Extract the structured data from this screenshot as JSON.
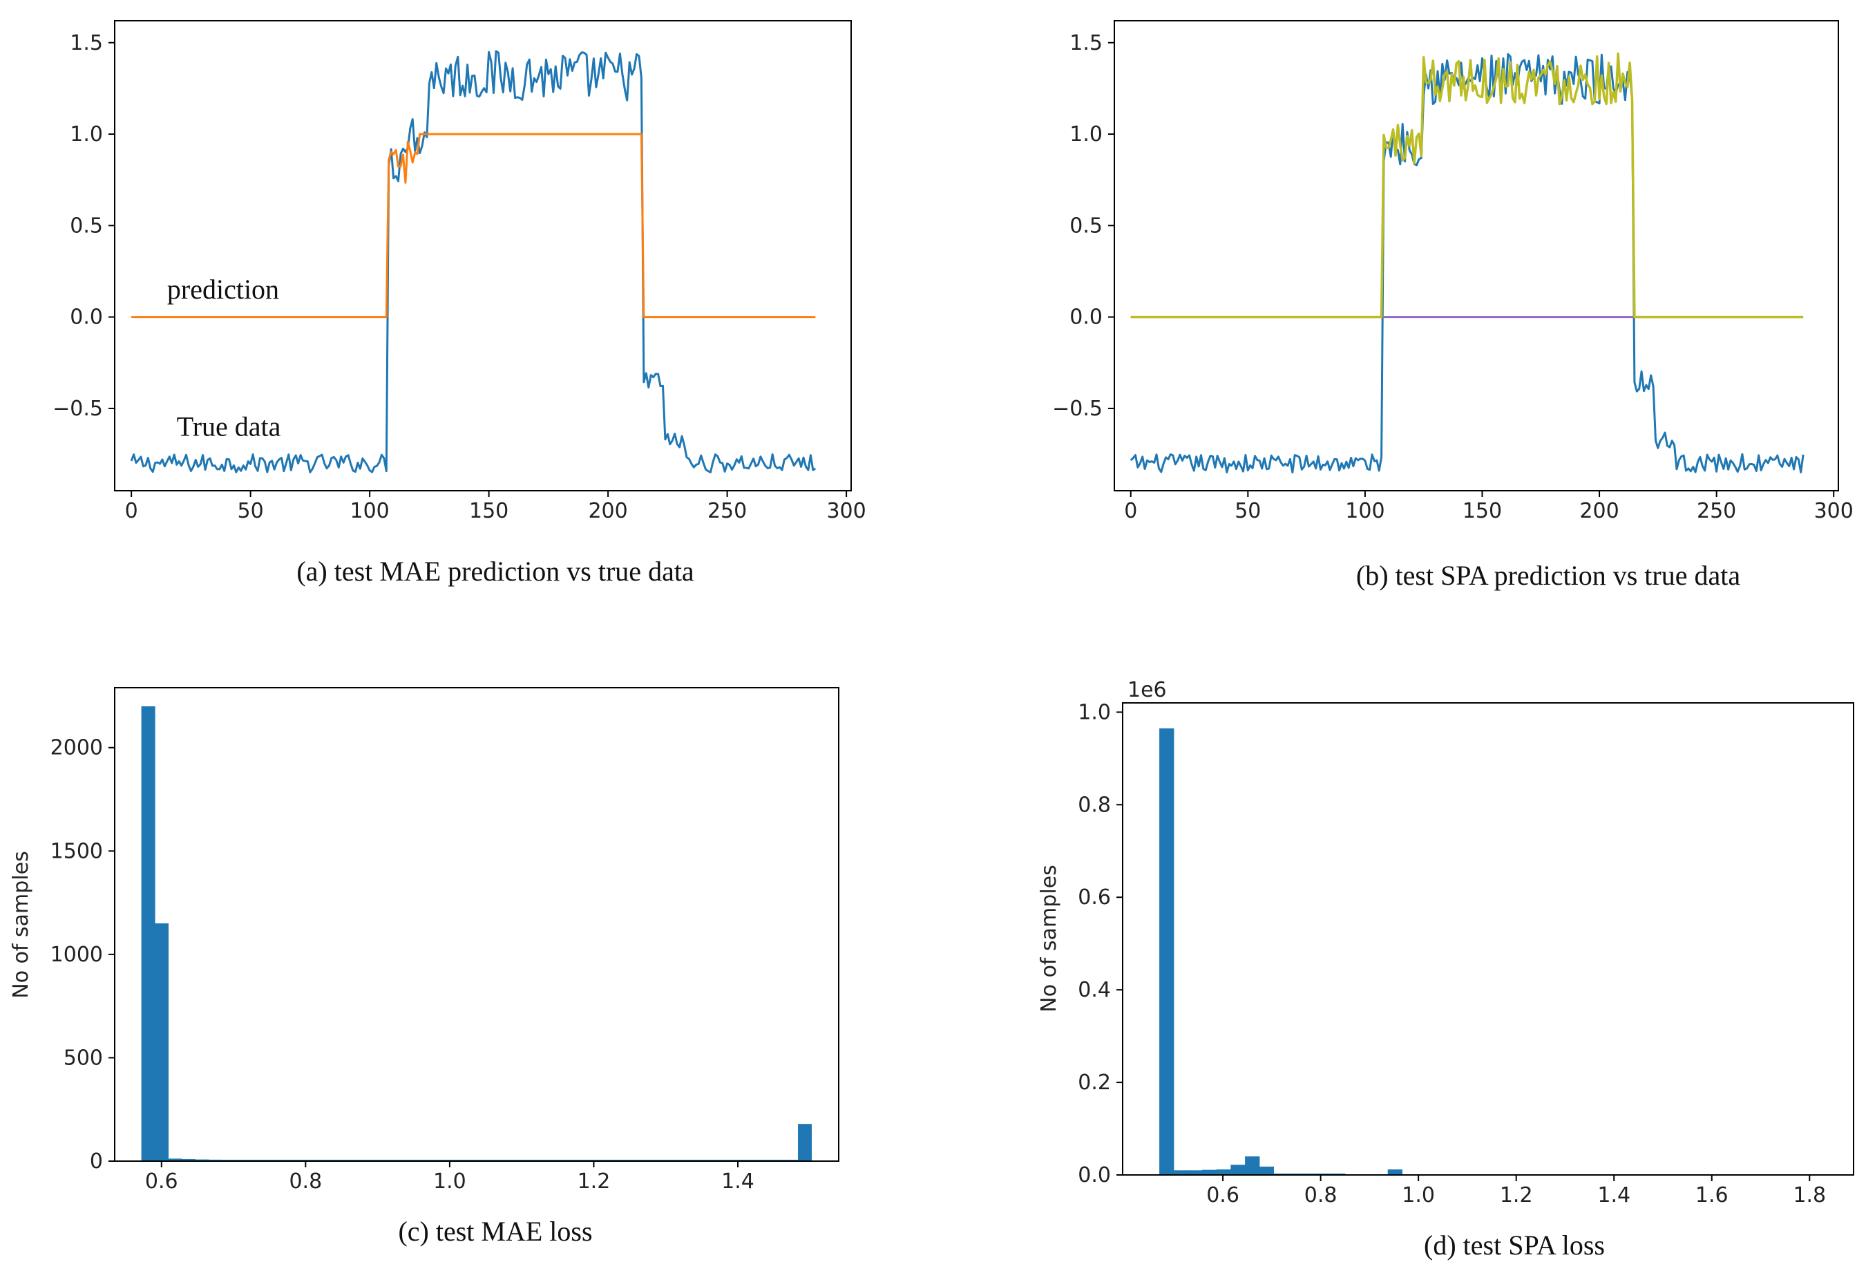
{
  "chart_data": [
    {
      "id": "a",
      "type": "line",
      "caption": "(a) test MAE prediction vs true data",
      "xlim": [
        -7,
        302
      ],
      "ylim": [
        -0.95,
        1.62
      ],
      "xticks": [
        0,
        50,
        100,
        150,
        200,
        250,
        300
      ],
      "xtick_labels": [
        "0",
        "50",
        "100",
        "150",
        "200",
        "250",
        "300"
      ],
      "yticks": [
        -0.5,
        0.0,
        0.5,
        1.0,
        1.5
      ],
      "ytick_labels": [
        "−0.5",
        "0.0",
        "0.5",
        "1.0",
        "1.5"
      ],
      "annotations": [
        {
          "text": "prediction",
          "x": 15,
          "y": 0.1
        },
        {
          "text": "True data",
          "x": 19,
          "y": -0.65
        }
      ],
      "series": [
        {
          "name": "True data",
          "color": "#1f77b4",
          "segments": [
            {
              "x_start": 0,
              "x_end": 107,
              "level": -0.8,
              "amp": 0.05
            },
            {
              "x_start": 108,
              "x_end": 113,
              "level": 0.85,
              "amp": 0.12
            },
            {
              "x_start": 114,
              "x_end": 124,
              "level": 1.0,
              "amp": 0.12
            },
            {
              "x_start": 125,
              "x_end": 214,
              "level": 1.32,
              "amp": 0.14
            },
            {
              "x_start": 215,
              "x_end": 223,
              "level": -0.35,
              "amp": 0.06
            },
            {
              "x_start": 224,
              "x_end": 232,
              "level": -0.68,
              "amp": 0.05
            },
            {
              "x_start": 233,
              "x_end": 287,
              "level": -0.8,
              "amp": 0.05
            }
          ]
        },
        {
          "name": "prediction",
          "color": "#ff7f0e",
          "segments": [
            {
              "x_start": 0,
              "x_end": 107,
              "level": 0.0,
              "amp": 0
            },
            {
              "x_start": 108,
              "x_end": 120,
              "level": 0.82,
              "amp": 0.14
            },
            {
              "x_start": 121,
              "x_end": 214,
              "level": 1.0,
              "amp": 0
            },
            {
              "x_start": 215,
              "x_end": 287,
              "level": 0.0,
              "amp": 0
            }
          ]
        }
      ]
    },
    {
      "id": "b",
      "type": "line",
      "caption": "(b) test SPA prediction vs true data",
      "xlim": [
        -7,
        302
      ],
      "ylim": [
        -0.95,
        1.62
      ],
      "xticks": [
        0,
        50,
        100,
        150,
        200,
        250,
        300
      ],
      "xtick_labels": [
        "0",
        "50",
        "100",
        "150",
        "200",
        "250",
        "300"
      ],
      "yticks": [
        -0.5,
        0.0,
        0.5,
        1.0,
        1.5
      ],
      "ytick_labels": [
        "−0.5",
        "0.0",
        "0.5",
        "1.0",
        "1.5"
      ],
      "annotations": [],
      "series": [
        {
          "name": "true data",
          "color": "#1f77b4",
          "segments": [
            {
              "x_start": 0,
              "x_end": 107,
              "level": -0.8,
              "amp": 0.05
            },
            {
              "x_start": 108,
              "x_end": 124,
              "level": 0.95,
              "amp": 0.12
            },
            {
              "x_start": 125,
              "x_end": 214,
              "level": 1.3,
              "amp": 0.14
            },
            {
              "x_start": 215,
              "x_end": 223,
              "level": -0.35,
              "amp": 0.06
            },
            {
              "x_start": 224,
              "x_end": 232,
              "level": -0.68,
              "amp": 0.05
            },
            {
              "x_start": 233,
              "x_end": 287,
              "level": -0.8,
              "amp": 0.05
            }
          ]
        },
        {
          "name": "zero baseline",
          "color": "#9467bd",
          "segments": [
            {
              "x_start": 0,
              "x_end": 287,
              "level": 0.0,
              "amp": 0
            }
          ]
        },
        {
          "name": "prediction",
          "color": "#bcbd22",
          "segments": [
            {
              "x_start": 0,
              "x_end": 107,
              "level": 0.0,
              "amp": 0
            },
            {
              "x_start": 108,
              "x_end": 124,
              "level": 0.95,
              "amp": 0.12
            },
            {
              "x_start": 125,
              "x_end": 214,
              "level": 1.3,
              "amp": 0.14
            },
            {
              "x_start": 215,
              "x_end": 287,
              "level": 0.0,
              "amp": 0
            }
          ]
        }
      ]
    },
    {
      "id": "c",
      "type": "bar",
      "caption": "(c) test MAE loss",
      "ylabel": "No of samples",
      "xlim": [
        0.535,
        1.54
      ],
      "ylim": [
        0,
        2290
      ],
      "xticks": [
        0.6,
        0.8,
        1.0,
        1.2,
        1.4
      ],
      "xtick_labels": [
        "0.6",
        "0.8",
        "1.0",
        "1.2",
        "1.4"
      ],
      "yticks": [
        0,
        500,
        1000,
        1500,
        2000
      ],
      "ytick_labels": [
        "0",
        "500",
        "1000",
        "1500",
        "2000"
      ],
      "bar_color": "#1f77b4",
      "bin_start": 0.572,
      "bin_width": 0.0186,
      "values": [
        2200,
        1150,
        12,
        10,
        8,
        7,
        6,
        5,
        4,
        4,
        3,
        3,
        3,
        3,
        3,
        3,
        3,
        3,
        3,
        3,
        3,
        3,
        3,
        3,
        3,
        3,
        3,
        3,
        3,
        3,
        3,
        3,
        3,
        3,
        3,
        3,
        3,
        3,
        3,
        3,
        3,
        3,
        3,
        3,
        3,
        3,
        3,
        3,
        3,
        180
      ]
    },
    {
      "id": "d",
      "type": "bar",
      "caption": "(d) test SPA loss",
      "ylabel": "No of samples",
      "offset_text": "1e6",
      "xlim": [
        0.395,
        1.89
      ],
      "ylim": [
        0,
        1.02
      ],
      "xticks": [
        0.6,
        0.8,
        1.0,
        1.2,
        1.4,
        1.6,
        1.8
      ],
      "xtick_labels": [
        "0.6",
        "0.8",
        "1.0",
        "1.2",
        "1.4",
        "1.6",
        "1.8"
      ],
      "yticks": [
        0.0,
        0.2,
        0.4,
        0.6,
        0.8,
        1.0
      ],
      "ytick_labels": [
        "0.0",
        "0.2",
        "0.4",
        "0.6",
        "0.8",
        "1.0"
      ],
      "bar_color": "#1f77b4",
      "bin_start": 0.47,
      "bin_width": 0.0292,
      "values": [
        0.965,
        0.01,
        0.01,
        0.011,
        0.012,
        0.022,
        0.04,
        0.018,
        0.001,
        0.001,
        0.0005,
        0.0005,
        0.0005,
        0,
        0,
        0,
        0.012,
        0,
        0,
        0
      ]
    }
  ]
}
